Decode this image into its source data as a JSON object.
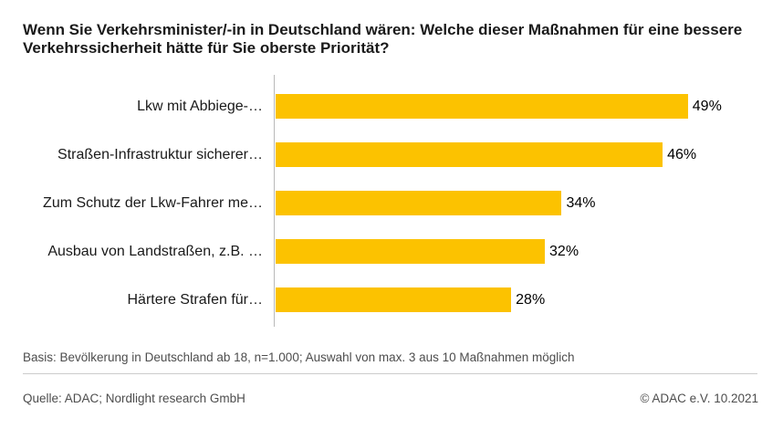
{
  "header": {
    "title": "Wenn Sie Verkehrsminister/-in in Deutschland wären: Welche dieser Maßnahmen für eine bessere Verkehrssicherheit hätte für Sie oberste Priorität?"
  },
  "chart_data": {
    "type": "bar",
    "orientation": "horizontal",
    "title": "Wenn Sie Verkehrsminister/-in in Deutschland wären: Welche dieser Maßnahmen für eine bessere Verkehrssicherheit hätte für Sie oberste Priorität?",
    "categories": [
      "Lkw mit Abbiege-…",
      "Straßen-Infrastruktur sicherer…",
      "Zum Schutz der Lkw-Fahrer me…",
      "Ausbau von Landstraßen, z.B. …",
      "Härtere Strafen für…"
    ],
    "values": [
      49,
      46,
      34,
      32,
      28
    ],
    "value_labels": [
      "49%",
      "46%",
      "34%",
      "32%",
      "28%"
    ],
    "unit": "%",
    "xlim": [
      0,
      57
    ],
    "grid": false,
    "legend": "none",
    "bar_color": "#FCC200",
    "axis_color": "#b9b9b9",
    "label_color": "#1a1a1a"
  },
  "footer": {
    "basis": "Basis: Bevölkerung in Deutschland ab 18, n=1.000; Auswahl von max. 3 aus 10 Maßnahmen möglich",
    "source": "Quelle: ADAC; Nordlight research GmbH",
    "copyright": "© ADAC e.V. 10.2021"
  }
}
